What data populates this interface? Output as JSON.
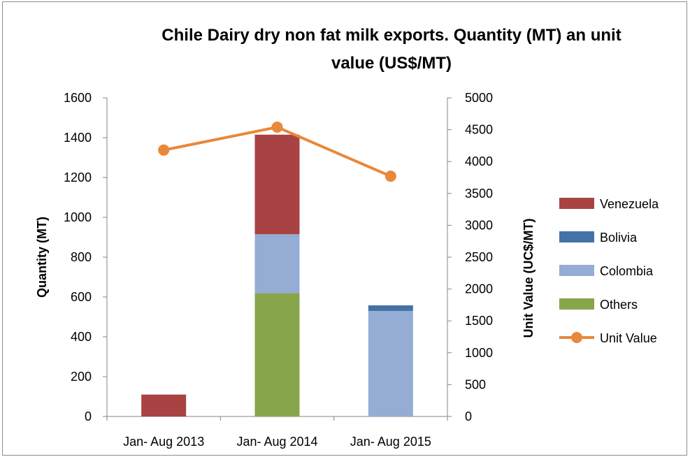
{
  "chart_data": {
    "type": "bar",
    "stacked": true,
    "title_lines": [
      "Chile Dairy dry non fat  milk exports. Quantity (MT) an unit",
      "value (US$/MT)"
    ],
    "categories": [
      "Jan- Aug 2013",
      "Jan- Aug 2014",
      "Jan- Aug 2015"
    ],
    "ylabel": "Quantity (MT)",
    "ylim": [
      0,
      1600
    ],
    "yticks": [
      0,
      200,
      400,
      600,
      800,
      1000,
      1200,
      1400,
      1600
    ],
    "y2label": "Unit  Value (UC$/MT)",
    "y2lim": [
      0,
      5000
    ],
    "y2ticks": [
      0,
      500,
      1000,
      1500,
      2000,
      2500,
      3000,
      3500,
      4000,
      4500,
      5000
    ],
    "grid": false,
    "legend_position": "right",
    "series": [
      {
        "name": "Venezuela",
        "color": "#a94343",
        "values": [
          110,
          500,
          0
        ]
      },
      {
        "name": "Bolivia",
        "color": "#4472a8",
        "values": [
          0,
          0,
          28
        ]
      },
      {
        "name": "Colombia",
        "color": "#95acd4",
        "values": [
          0,
          295,
          530
        ]
      },
      {
        "name": "Others",
        "color": "#87a64c",
        "values": [
          0,
          620,
          0
        ]
      }
    ],
    "stack_order": [
      "Others",
      "Colombia",
      "Bolivia",
      "Venezuela"
    ],
    "line_series": {
      "name": "Unit Value",
      "color": "#e8883a",
      "axis": "secondary",
      "values": [
        4180,
        4540,
        3770
      ]
    }
  }
}
